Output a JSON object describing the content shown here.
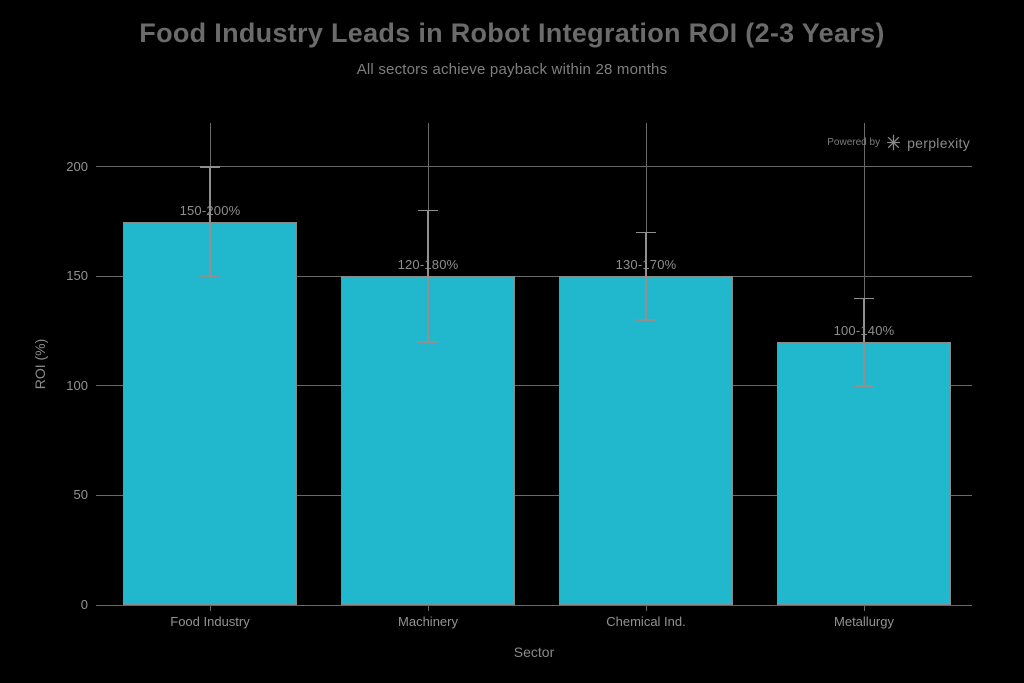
{
  "title": "Food Industry Leads in Robot Integration ROI (2-3 Years)",
  "subtitle": "All sectors achieve payback within 28 months",
  "watermark": {
    "prefix": "Powered by",
    "brand": "perplexity",
    "icon": "perplexity-logo"
  },
  "chart_data": {
    "type": "bar",
    "title": "Food Industry Leads in Robot Integration ROI (2-3 Years)",
    "subtitle": "All sectors achieve payback within 28 months",
    "categories": [
      "Food Industry",
      "Machinery",
      "Chemical Ind.",
      "Metallurgy"
    ],
    "values": [
      175,
      150,
      150,
      120
    ],
    "error_low": [
      150,
      120,
      130,
      100
    ],
    "error_high": [
      200,
      180,
      170,
      140
    ],
    "bar_labels": [
      "150-200%",
      "120-180%",
      "130-170%",
      "100-140%"
    ],
    "xlabel": "Sector",
    "ylabel": "ROI (%)",
    "yticks": [
      0,
      50,
      100,
      150,
      200
    ],
    "ylim": [
      0,
      220
    ],
    "grid": true,
    "legend": "none",
    "bar_color": "#21B8CD",
    "grid_color": "#6a6a6a",
    "error_color": "#909090",
    "text_color": "#939393",
    "background": "#000000"
  }
}
